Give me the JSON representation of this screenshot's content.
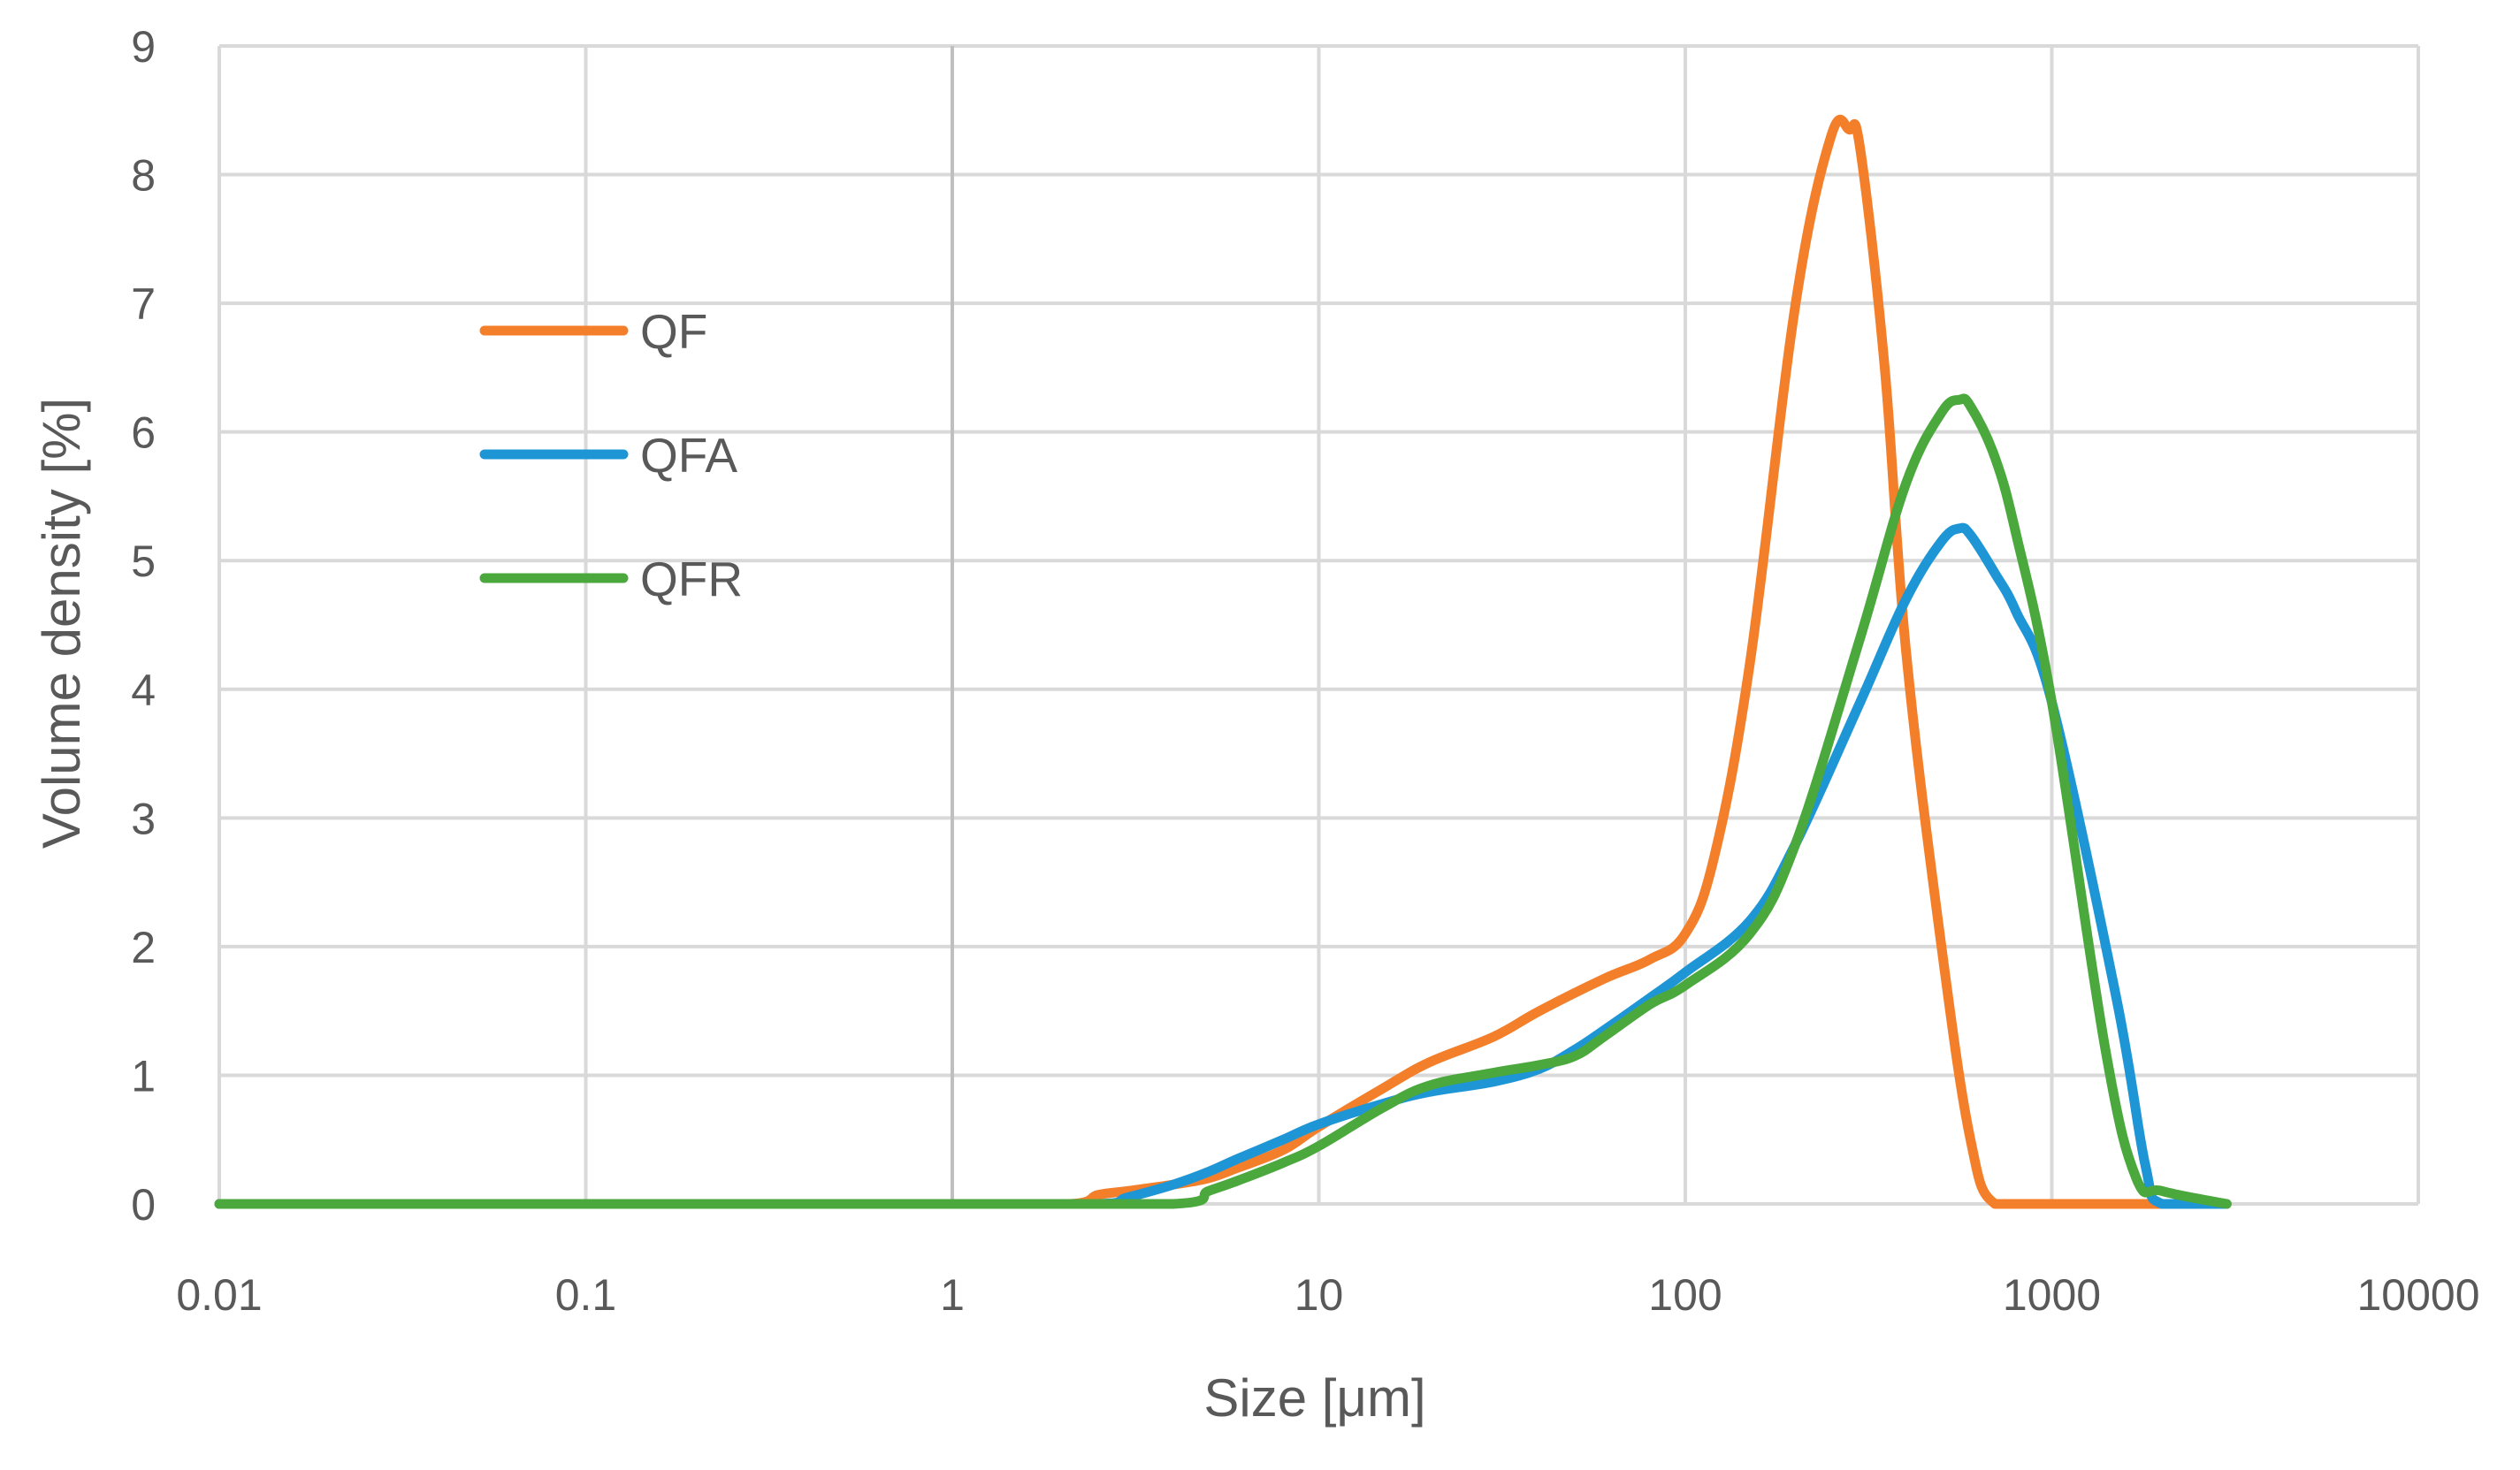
{
  "chart_data": {
    "type": "line",
    "title": "",
    "xlabel": "Size [μm]",
    "ylabel": "Volume density [%]",
    "x_scale": "log",
    "xlim": [
      0.01,
      10000
    ],
    "ylim": [
      0,
      9
    ],
    "x_ticks": [
      "0.01",
      "0.1",
      "1",
      "10",
      "100",
      "1000",
      "10000"
    ],
    "y_ticks": [
      "0",
      "1",
      "2",
      "3",
      "4",
      "5",
      "6",
      "7",
      "8",
      "9"
    ],
    "grid": true,
    "legend_position": "upper-left inside plot",
    "series": [
      {
        "name": "QF",
        "color": "#f47f2a",
        "x": [
          0.01,
          0.1,
          1,
          2.1,
          2.5,
          3,
          4,
          5,
          6,
          8,
          10,
          15,
          20,
          30,
          40,
          60,
          80,
          100,
          120,
          150,
          200,
          250,
          280,
          300,
          350,
          400,
          500,
          600,
          700,
          1000,
          2000
        ],
        "y": [
          0,
          0,
          0,
          0,
          0.07,
          0.1,
          0.15,
          0.2,
          0.28,
          0.42,
          0.6,
          0.9,
          1.1,
          1.3,
          1.5,
          1.75,
          1.9,
          2.1,
          2.7,
          4.2,
          7.0,
          8.3,
          8.35,
          8.2,
          6.5,
          4.3,
          2.0,
          0.5,
          0,
          0,
          0
        ]
      },
      {
        "name": "QFA",
        "color": "#1e96d6",
        "x": [
          0.01,
          0.1,
          1,
          2.5,
          3,
          4,
          5,
          6,
          8,
          10,
          15,
          20,
          30,
          40,
          50,
          60,
          80,
          100,
          150,
          200,
          300,
          400,
          500,
          560,
          600,
          700,
          800,
          1000,
          1500,
          1800,
          2000,
          3000
        ],
        "y": [
          0,
          0,
          0,
          0,
          0.05,
          0.15,
          0.25,
          0.35,
          0.5,
          0.62,
          0.78,
          0.87,
          0.95,
          1.05,
          1.2,
          1.35,
          1.6,
          1.8,
          2.2,
          2.8,
          3.9,
          4.7,
          5.15,
          5.25,
          5.2,
          4.9,
          4.6,
          3.9,
          1.6,
          0.3,
          0,
          0
        ]
      },
      {
        "name": "QFR",
        "color": "#4aa83d",
        "x": [
          0.01,
          0.1,
          1,
          4,
          5,
          6,
          8,
          10,
          15,
          20,
          30,
          40,
          50,
          60,
          80,
          100,
          150,
          200,
          300,
          400,
          500,
          560,
          600,
          700,
          800,
          1000,
          1400,
          1700,
          2000,
          3000
        ],
        "y": [
          0,
          0,
          0,
          0,
          0.1,
          0.18,
          0.32,
          0.45,
          0.75,
          0.92,
          1.02,
          1.08,
          1.15,
          1.3,
          1.55,
          1.7,
          2.1,
          2.8,
          4.4,
          5.6,
          6.15,
          6.25,
          6.2,
          5.8,
          5.2,
          3.9,
          1.2,
          0.2,
          0.1,
          0
        ]
      }
    ]
  }
}
